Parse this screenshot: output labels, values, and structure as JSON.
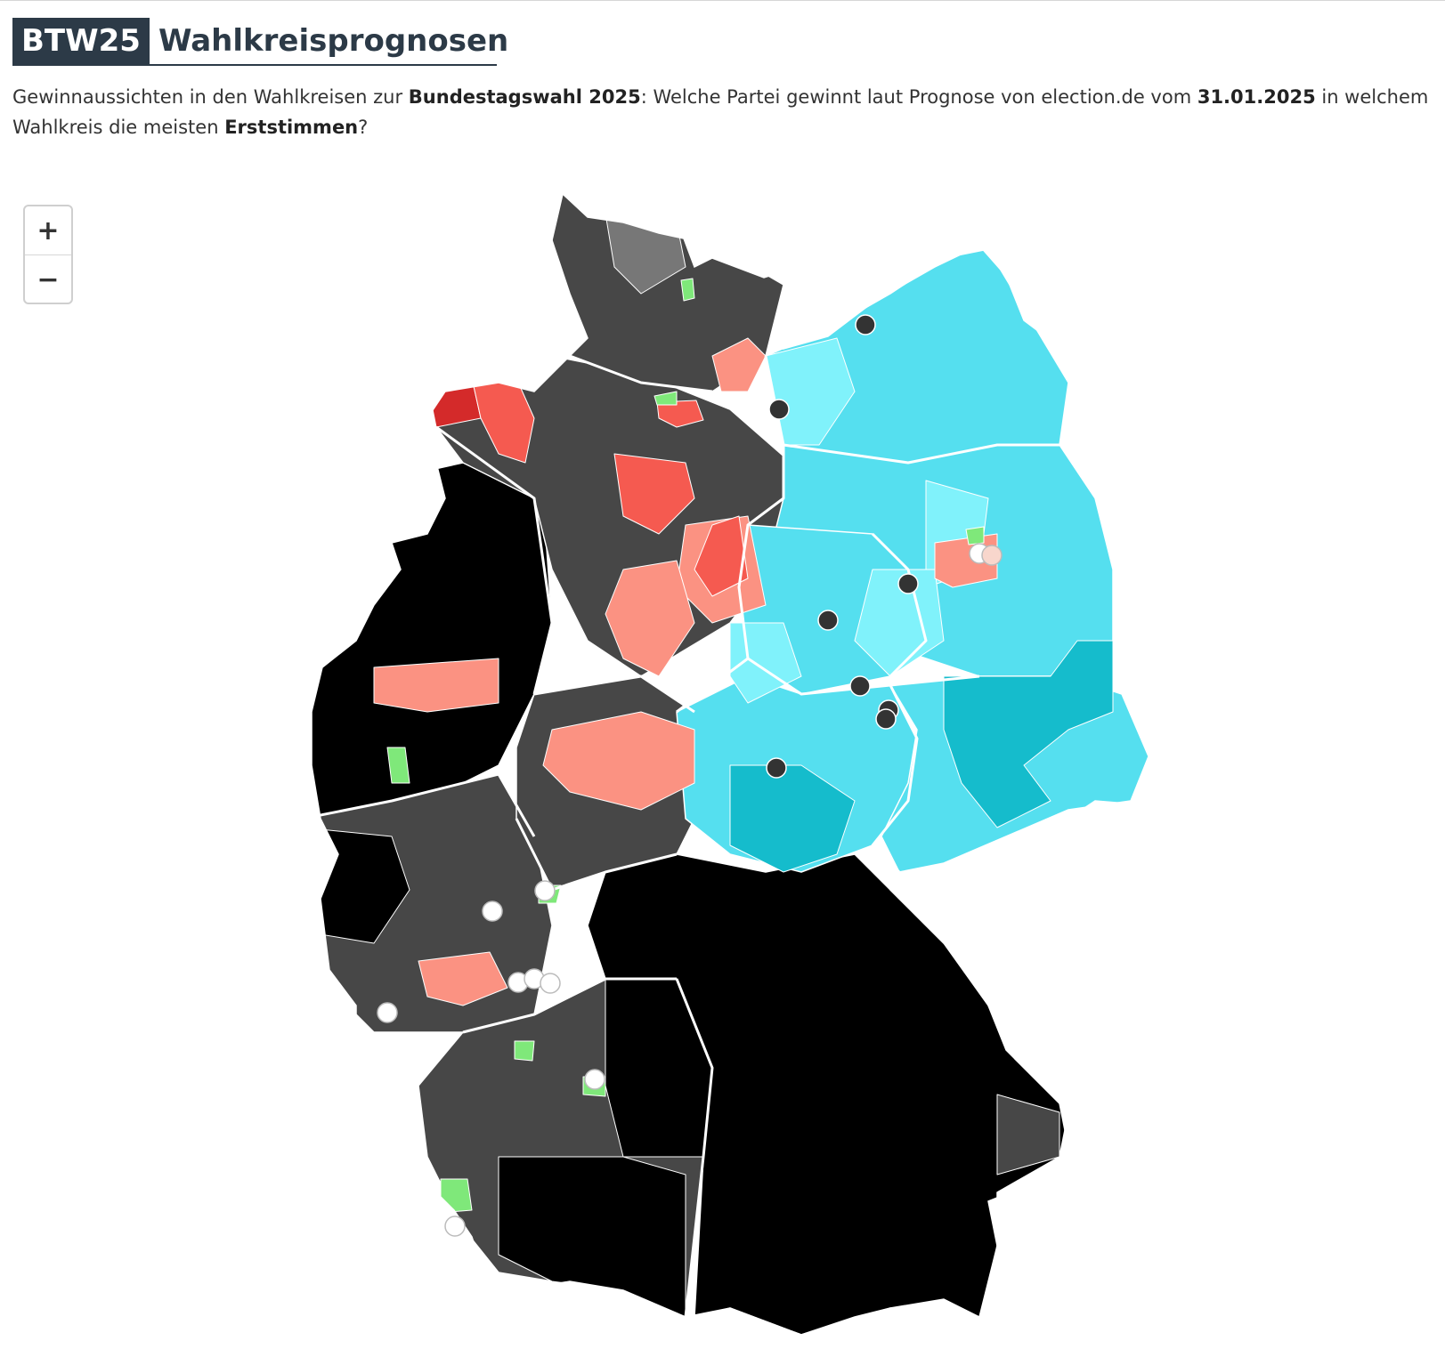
{
  "header": {
    "badge": "BTW25",
    "title": "Wahlkreisprognosen"
  },
  "subtitle": {
    "p1": "Gewinnaussichten in den Wahlkreisen zur ",
    "b1": "Bundestagswahl 2025",
    "p2": ": Welche Partei gewinnt laut Prognose von election.de vom ",
    "b2": "31.01.2025",
    "p3": " in welchem Wahlkreis die meisten ",
    "b3": "Erststimmen",
    "p4": "?"
  },
  "zoom": {
    "in_label": "+",
    "out_label": "−"
  },
  "map": {
    "colors": {
      "cdu_strong": "#000000",
      "cdu_mid": "#474747",
      "cdu_light": "#777777",
      "spd_strong": "#d42a2a",
      "spd_mid": "#f55a50",
      "spd_light": "#fb9282",
      "afd_strong": "#15bccc",
      "afd_mid": "#55dfef",
      "afd_light": "#80f2fb",
      "green": "#7fe87a",
      "linke_marker": "#333333",
      "white_marker": "#ffffff",
      "pink_marker": "#f8d6cc",
      "border": "#ffffff"
    }
  }
}
